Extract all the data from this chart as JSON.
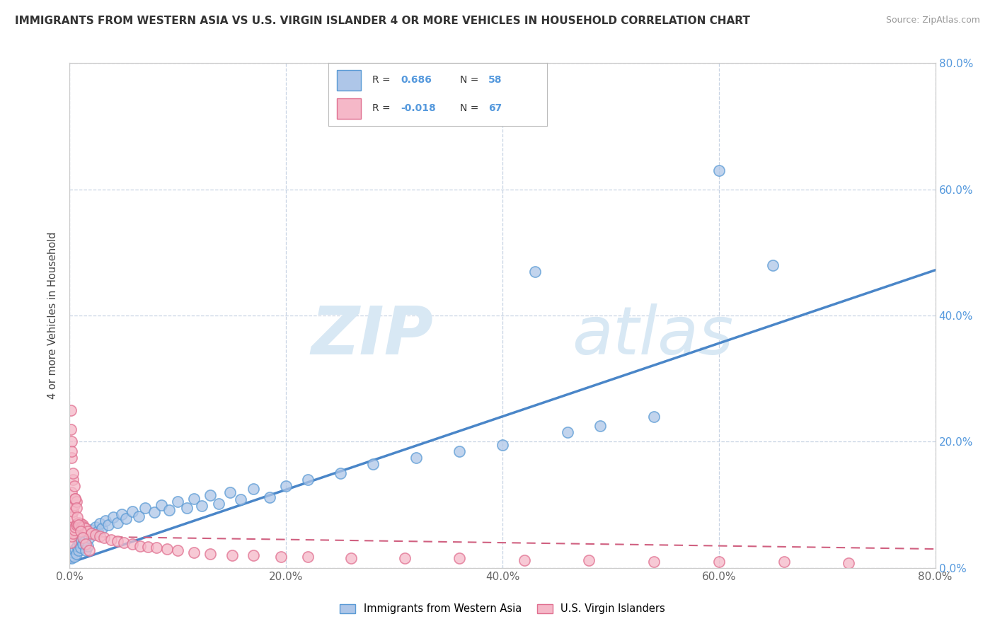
{
  "title": "IMMIGRANTS FROM WESTERN ASIA VS U.S. VIRGIN ISLANDER 4 OR MORE VEHICLES IN HOUSEHOLD CORRELATION CHART",
  "source": "Source: ZipAtlas.com",
  "ylabel": "4 or more Vehicles in Household",
  "xlim": [
    0,
    0.8
  ],
  "ylim": [
    0,
    0.8
  ],
  "xticks": [
    0.0,
    0.2,
    0.4,
    0.6,
    0.8
  ],
  "yticks": [
    0.0,
    0.2,
    0.4,
    0.6,
    0.8
  ],
  "xticklabels": [
    "0.0%",
    "20.0%",
    "40.0%",
    "60.0%",
    "80.0%"
  ],
  "yticklabels_right": [
    "0.0%",
    "20.0%",
    "40.0%",
    "60.0%",
    "80.0%"
  ],
  "legend_labels": [
    "Immigrants from Western Asia",
    "U.S. Virgin Islanders"
  ],
  "series1_R": 0.686,
  "series1_N": 58,
  "series2_R": -0.018,
  "series2_N": 67,
  "series1_color": "#aec6e8",
  "series2_color": "#f5b8c8",
  "series1_edge_color": "#5b9bd5",
  "series2_edge_color": "#e07090",
  "series1_line_color": "#4a86c8",
  "series2_line_color": "#d06080",
  "watermark_color": "#d8e8f4",
  "background_color": "#ffffff",
  "grid_color": "#c8d4e4",
  "title_color": "#333333",
  "right_axis_color": "#5599dd",
  "series1_x": [
    0.002,
    0.003,
    0.004,
    0.005,
    0.006,
    0.007,
    0.008,
    0.009,
    0.01,
    0.011,
    0.012,
    0.013,
    0.014,
    0.015,
    0.016,
    0.017,
    0.018,
    0.02,
    0.022,
    0.024,
    0.026,
    0.028,
    0.03,
    0.033,
    0.036,
    0.04,
    0.044,
    0.048,
    0.052,
    0.058,
    0.064,
    0.07,
    0.078,
    0.085,
    0.092,
    0.1,
    0.108,
    0.115,
    0.122,
    0.13,
    0.138,
    0.148,
    0.158,
    0.17,
    0.185,
    0.2,
    0.22,
    0.25,
    0.28,
    0.32,
    0.36,
    0.4,
    0.43,
    0.46,
    0.49,
    0.54,
    0.6,
    0.65
  ],
  "series1_y": [
    0.015,
    0.025,
    0.018,
    0.03,
    0.022,
    0.035,
    0.028,
    0.04,
    0.032,
    0.045,
    0.038,
    0.05,
    0.042,
    0.028,
    0.055,
    0.035,
    0.048,
    0.06,
    0.055,
    0.065,
    0.058,
    0.07,
    0.062,
    0.075,
    0.068,
    0.08,
    0.072,
    0.085,
    0.078,
    0.09,
    0.082,
    0.095,
    0.088,
    0.1,
    0.092,
    0.105,
    0.095,
    0.11,
    0.098,
    0.115,
    0.102,
    0.12,
    0.108,
    0.125,
    0.112,
    0.13,
    0.14,
    0.15,
    0.165,
    0.175,
    0.185,
    0.195,
    0.47,
    0.215,
    0.225,
    0.24,
    0.63,
    0.48
  ],
  "series2_x": [
    0.001,
    0.001,
    0.001,
    0.002,
    0.002,
    0.002,
    0.002,
    0.003,
    0.003,
    0.003,
    0.004,
    0.004,
    0.005,
    0.005,
    0.006,
    0.006,
    0.007,
    0.008,
    0.009,
    0.01,
    0.011,
    0.012,
    0.013,
    0.015,
    0.017,
    0.02,
    0.024,
    0.028,
    0.032,
    0.038,
    0.044,
    0.05,
    0.058,
    0.065,
    0.072,
    0.08,
    0.09,
    0.1,
    0.115,
    0.13,
    0.15,
    0.17,
    0.195,
    0.22,
    0.26,
    0.31,
    0.36,
    0.42,
    0.48,
    0.54,
    0.6,
    0.66,
    0.72,
    0.001,
    0.001,
    0.002,
    0.002,
    0.003,
    0.004,
    0.005,
    0.006,
    0.007,
    0.008,
    0.01,
    0.012,
    0.015,
    0.018
  ],
  "series2_y": [
    0.04,
    0.065,
    0.095,
    0.05,
    0.08,
    0.12,
    0.175,
    0.055,
    0.09,
    0.14,
    0.06,
    0.1,
    0.065,
    0.11,
    0.068,
    0.105,
    0.07,
    0.072,
    0.068,
    0.07,
    0.065,
    0.068,
    0.065,
    0.062,
    0.058,
    0.055,
    0.052,
    0.05,
    0.048,
    0.045,
    0.042,
    0.04,
    0.038,
    0.035,
    0.033,
    0.032,
    0.03,
    0.028,
    0.025,
    0.022,
    0.02,
    0.02,
    0.018,
    0.018,
    0.015,
    0.015,
    0.015,
    0.012,
    0.012,
    0.01,
    0.01,
    0.01,
    0.008,
    0.22,
    0.25,
    0.2,
    0.185,
    0.15,
    0.13,
    0.11,
    0.095,
    0.08,
    0.068,
    0.058,
    0.048,
    0.038,
    0.028
  ],
  "trend1_x0": 0.0,
  "trend1_y0": 0.008,
  "trend1_x1": 0.8,
  "trend1_y1": 0.472,
  "trend2_x0": 0.0,
  "trend2_y0": 0.05,
  "trend2_x1": 0.8,
  "trend2_y1": 0.03
}
